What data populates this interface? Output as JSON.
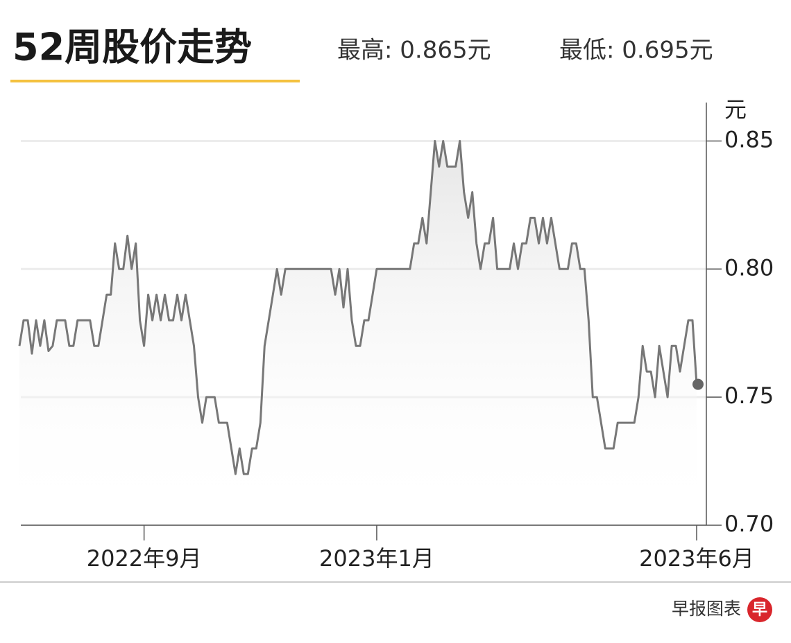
{
  "chart_data": {
    "type": "line",
    "title": "52周股价走势",
    "subtitle": [
      "最高: 0.865元",
      "最低: 0.695元"
    ],
    "y_axis_label": "元",
    "source": "早报图表",
    "logo": "早",
    "color": "#777777",
    "values": [
      0.77,
      0.78,
      0.78,
      0.767,
      0.78,
      0.77,
      0.78,
      0.768,
      0.77,
      0.78,
      0.78,
      0.78,
      0.77,
      0.77,
      0.78,
      0.78,
      0.78,
      0.78,
      0.77,
      0.77,
      0.78,
      0.79,
      0.79,
      0.81,
      0.8,
      0.8,
      0.813,
      0.8,
      0.81,
      0.78,
      0.77,
      0.79,
      0.78,
      0.79,
      0.78,
      0.79,
      0.78,
      0.78,
      0.79,
      0.78,
      0.79,
      0.78,
      0.77,
      0.75,
      0.74,
      0.75,
      0.75,
      0.75,
      0.74,
      0.74,
      0.74,
      0.73,
      0.72,
      0.73,
      0.72,
      0.72,
      0.73,
      0.73,
      0.74,
      0.77,
      0.78,
      0.79,
      0.8,
      0.79,
      0.8,
      0.8,
      0.8,
      0.8,
      0.8,
      0.8,
      0.8,
      0.8,
      0.8,
      0.8,
      0.8,
      0.8,
      0.79,
      0.8,
      0.785,
      0.8,
      0.78,
      0.77,
      0.77,
      0.78,
      0.78,
      0.79,
      0.8,
      0.8,
      0.8,
      0.8,
      0.8,
      0.8,
      0.8,
      0.8,
      0.8,
      0.81,
      0.81,
      0.82,
      0.81,
      0.83,
      0.85,
      0.84,
      0.85,
      0.84,
      0.84,
      0.84,
      0.85,
      0.83,
      0.82,
      0.83,
      0.81,
      0.8,
      0.81,
      0.81,
      0.82,
      0.8,
      0.8,
      0.8,
      0.8,
      0.81,
      0.8,
      0.81,
      0.81,
      0.82,
      0.82,
      0.81,
      0.82,
      0.81,
      0.82,
      0.81,
      0.8,
      0.8,
      0.8,
      0.81,
      0.81,
      0.8,
      0.8,
      0.78,
      0.75,
      0.75,
      0.74,
      0.73,
      0.73,
      0.73,
      0.74,
      0.74,
      0.74,
      0.74,
      0.74,
      0.75,
      0.77,
      0.76,
      0.76,
      0.75,
      0.77,
      0.76,
      0.75,
      0.77,
      0.77,
      0.76,
      0.77,
      0.78,
      0.78,
      0.755
    ],
    "xlim": [
      0,
      163
    ],
    "xticks": [
      {
        "value": 30,
        "label": "2022年9月"
      },
      {
        "value": 86,
        "label": "2023年1月"
      },
      {
        "value": 163,
        "label": "2023年6月"
      }
    ],
    "ylim": [
      0.7,
      0.865
    ],
    "yticks": [
      {
        "value": 0.7,
        "label": "0.70"
      },
      0.75,
      {
        "value": 0.8,
        "label": "0.80"
      },
      0.85
    ],
    "grid": true
  }
}
